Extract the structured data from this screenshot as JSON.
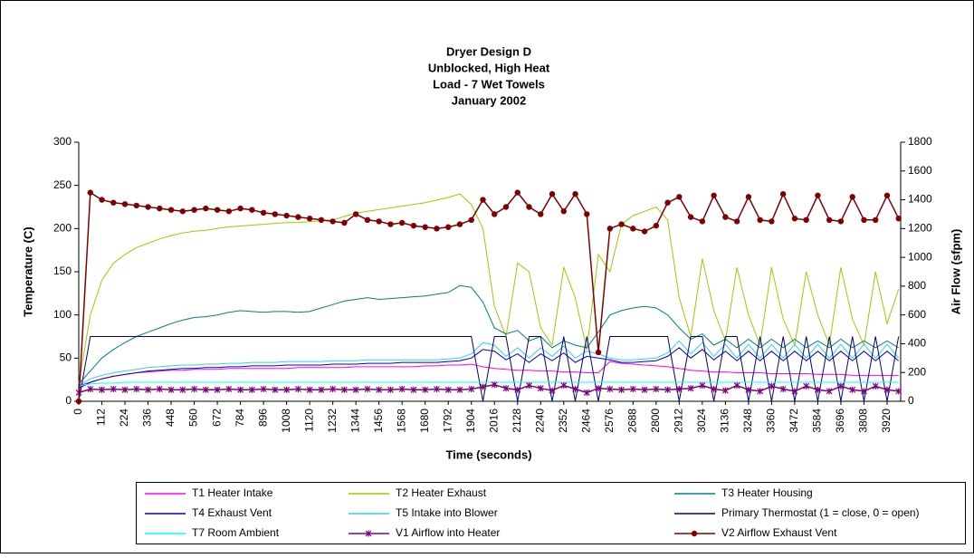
{
  "chart_data": {
    "type": "line",
    "title": [
      "Dryer Design D",
      "Unblocked, High Heat",
      "Load - 7 Wet Towels",
      "January 2002"
    ],
    "x_label": "Time (seconds)",
    "y_label": "Temperature (C)",
    "y2_label": "Air Flow (sfpm)",
    "x": [
      0,
      56,
      112,
      168,
      224,
      280,
      336,
      392,
      448,
      504,
      560,
      616,
      672,
      728,
      784,
      840,
      896,
      952,
      1008,
      1064,
      1120,
      1176,
      1232,
      1288,
      1344,
      1400,
      1456,
      1512,
      1568,
      1624,
      1680,
      1736,
      1792,
      1848,
      1904,
      1960,
      2016,
      2072,
      2128,
      2184,
      2240,
      2296,
      2352,
      2408,
      2464,
      2520,
      2576,
      2632,
      2688,
      2744,
      2800,
      2856,
      2912,
      2968,
      3024,
      3080,
      3136,
      3192,
      3248,
      3304,
      3360,
      3416,
      3472,
      3528,
      3584,
      3640,
      3696,
      3752,
      3808,
      3864,
      3920,
      3976
    ],
    "xlim": [
      0,
      3986
    ],
    "xticks": [
      0,
      112,
      224,
      336,
      448,
      560,
      672,
      784,
      896,
      1008,
      1120,
      1232,
      1344,
      1456,
      1568,
      1680,
      1792,
      1904,
      2016,
      2128,
      2240,
      2352,
      2464,
      2576,
      2688,
      2800,
      2912,
      3024,
      3136,
      3248,
      3360,
      3472,
      3584,
      3696,
      3808,
      3920
    ],
    "ylim": [
      0,
      300
    ],
    "yticks": [
      0,
      50,
      100,
      150,
      200,
      250,
      300
    ],
    "y2lim": [
      0,
      1800
    ],
    "y2ticks": [
      0,
      200,
      400,
      600,
      800,
      1000,
      1200,
      1400,
      1600,
      1800
    ],
    "grid": false,
    "legend": "bottom",
    "series": [
      {
        "name": "T1 Heater Intake",
        "color": "#ff00ff",
        "values": [
          18,
          22,
          26,
          29,
          31,
          33,
          34,
          35,
          36,
          36,
          37,
          37,
          37,
          38,
          38,
          38,
          38,
          38,
          38,
          39,
          39,
          39,
          39,
          39,
          40,
          40,
          40,
          40,
          40,
          40,
          41,
          41,
          42,
          42,
          43,
          40,
          38,
          37,
          36,
          36,
          35,
          35,
          34,
          34,
          33,
          33,
          46,
          44,
          43,
          42,
          41,
          40,
          38,
          36,
          35,
          34,
          34,
          33,
          33,
          33,
          32,
          32,
          32,
          32,
          31,
          31,
          31,
          30,
          30,
          30,
          30,
          30
        ]
      },
      {
        "name": "T2 Heater Exhaust",
        "color": "#99cc00",
        "values": [
          20,
          100,
          140,
          160,
          170,
          178,
          183,
          188,
          192,
          195,
          197,
          198,
          200,
          202,
          203,
          204,
          205,
          206,
          207,
          207,
          208,
          209,
          210,
          214,
          218,
          220,
          222,
          224,
          226,
          228,
          230,
          233,
          236,
          240,
          228,
          200,
          110,
          75,
          160,
          150,
          85,
          65,
          155,
          120,
          60,
          170,
          150,
          205,
          215,
          220,
          225,
          210,
          120,
          75,
          165,
          105,
          70,
          155,
          100,
          65,
          155,
          95,
          65,
          150,
          100,
          65,
          155,
          95,
          65,
          150,
          90,
          130
        ]
      },
      {
        "name": "T3 Heater Housing",
        "color": "#008080",
        "values": [
          20,
          35,
          50,
          60,
          68,
          75,
          80,
          85,
          90,
          94,
          97,
          98,
          100,
          103,
          105,
          104,
          103,
          104,
          104,
          103,
          104,
          108,
          112,
          116,
          118,
          120,
          118,
          119,
          120,
          121,
          122,
          124,
          126,
          134,
          132,
          115,
          85,
          78,
          82,
          70,
          75,
          62,
          70,
          65,
          62,
          80,
          100,
          105,
          108,
          110,
          108,
          100,
          85,
          72,
          78,
          65,
          72,
          62,
          72,
          62,
          72,
          62,
          72,
          62,
          70,
          62,
          72,
          62,
          70,
          62,
          70,
          62
        ]
      },
      {
        "name": "T4 Exhaust Vent",
        "color": "#0000cc",
        "values": [
          15,
          22,
          26,
          29,
          31,
          33,
          35,
          36,
          37,
          38,
          38,
          39,
          39,
          40,
          40,
          41,
          41,
          41,
          42,
          42,
          42,
          42,
          43,
          43,
          43,
          44,
          44,
          44,
          45,
          45,
          45,
          45,
          46,
          47,
          50,
          60,
          58,
          48,
          55,
          45,
          55,
          47,
          56,
          45,
          52,
          50,
          48,
          45,
          45,
          46,
          47,
          52,
          62,
          50,
          60,
          48,
          58,
          47,
          58,
          47,
          58,
          47,
          58,
          47,
          58,
          47,
          58,
          47,
          58,
          47,
          58,
          47
        ]
      },
      {
        "name": "T5 Intake into Blower",
        "color": "#33ccff",
        "values": [
          18,
          26,
          30,
          33,
          35,
          37,
          39,
          40,
          41,
          42,
          42,
          43,
          43,
          44,
          44,
          45,
          45,
          45,
          46,
          46,
          46,
          46,
          47,
          47,
          47,
          48,
          48,
          48,
          48,
          48,
          48,
          48,
          49,
          50,
          55,
          68,
          65,
          52,
          62,
          50,
          62,
          52,
          64,
          50,
          58,
          55,
          50,
          48,
          48,
          49,
          50,
          56,
          70,
          55,
          68,
          52,
          66,
          50,
          66,
          50,
          66,
          50,
          66,
          50,
          66,
          50,
          66,
          50,
          66,
          50,
          66,
          50
        ]
      },
      {
        "name": "Primary Thermostat (1 = close, 0 = open)",
        "color": "#000080",
        "values": [
          0,
          75,
          75,
          75,
          75,
          75,
          75,
          75,
          75,
          75,
          75,
          75,
          75,
          75,
          75,
          75,
          75,
          75,
          75,
          75,
          75,
          75,
          75,
          75,
          75,
          75,
          75,
          75,
          75,
          75,
          75,
          75,
          75,
          75,
          75,
          0,
          75,
          75,
          0,
          75,
          75,
          0,
          75,
          0,
          75,
          0,
          75,
          75,
          75,
          75,
          75,
          75,
          0,
          75,
          75,
          0,
          75,
          75,
          0,
          75,
          0,
          75,
          0,
          75,
          0,
          75,
          0,
          75,
          0,
          75,
          0,
          75
        ]
      },
      {
        "name": "T7 Room Ambient",
        "color": "#00ffff",
        "values": [
          18,
          20,
          21,
          21,
          22,
          22,
          22,
          22,
          22,
          22,
          22,
          22,
          22,
          22,
          22,
          22,
          22,
          22,
          22,
          22,
          22,
          22,
          22,
          22,
          22,
          22,
          22,
          22,
          22,
          22,
          22,
          22,
          22,
          22,
          22,
          22,
          22,
          22,
          22,
          22,
          22,
          22,
          22,
          22,
          22,
          22,
          22,
          22,
          22,
          22,
          22,
          22,
          22,
          22,
          22,
          22,
          22,
          22,
          22,
          22,
          22,
          22,
          22,
          22,
          22,
          22,
          22,
          22,
          22,
          22,
          22,
          22
        ]
      },
      {
        "name": "V1 Airflow into Heater",
        "color": "#800080",
        "marker": "star",
        "axis": "y2",
        "values": [
          60,
          85,
          80,
          85,
          80,
          85,
          80,
          85,
          80,
          80,
          85,
          80,
          80,
          85,
          80,
          80,
          85,
          80,
          80,
          85,
          80,
          80,
          85,
          80,
          80,
          85,
          80,
          80,
          85,
          80,
          80,
          85,
          80,
          80,
          85,
          100,
          115,
          90,
          80,
          110,
          90,
          75,
          110,
          85,
          60,
          90,
          85,
          80,
          85,
          80,
          85,
          80,
          85,
          90,
          110,
          85,
          75,
          110,
          80,
          70,
          105,
          85,
          70,
          105,
          80,
          70,
          105,
          80,
          70,
          105,
          80,
          70
        ]
      },
      {
        "name": "V2 Airflow Exhaust Vent",
        "color": "#800000",
        "marker": "circle",
        "axis": "y2",
        "values": [
          0,
          1450,
          1400,
          1380,
          1370,
          1360,
          1350,
          1340,
          1330,
          1320,
          1330,
          1340,
          1330,
          1320,
          1340,
          1330,
          1310,
          1300,
          1290,
          1280,
          1270,
          1260,
          1250,
          1240,
          1300,
          1260,
          1250,
          1230,
          1240,
          1220,
          1210,
          1200,
          1210,
          1230,
          1260,
          1400,
          1300,
          1350,
          1450,
          1350,
          1300,
          1440,
          1320,
          1440,
          1300,
          340,
          1200,
          1230,
          1200,
          1180,
          1220,
          1380,
          1420,
          1280,
          1250,
          1430,
          1280,
          1250,
          1420,
          1260,
          1250,
          1440,
          1270,
          1260,
          1430,
          1260,
          1250,
          1420,
          1260,
          1260,
          1430,
          1270
        ]
      }
    ]
  }
}
